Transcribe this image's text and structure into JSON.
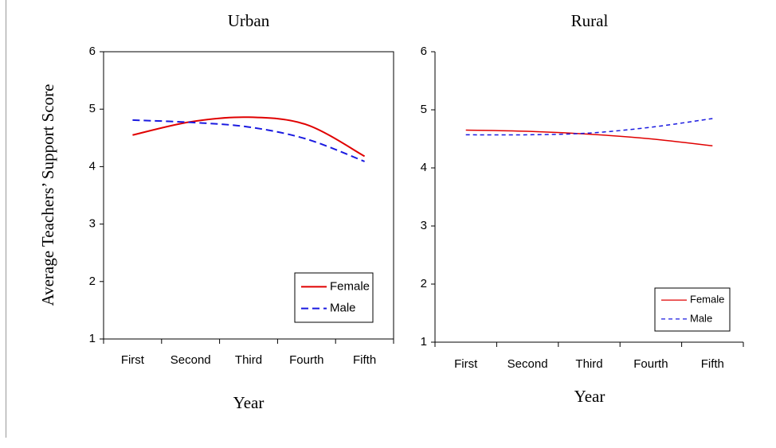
{
  "chart_data": [
    {
      "type": "line",
      "title": "Urban",
      "ylabel": "Average Teachers’ Support Score",
      "xlabel": "Year",
      "categories": [
        "First",
        "Second",
        "Third",
        "Fourth",
        "Fifth"
      ],
      "series": [
        {
          "name": "Female",
          "color": "#e00000",
          "values": [
            4.55,
            4.78,
            4.86,
            4.73,
            4.18
          ]
        },
        {
          "name": "Male",
          "color": "#1a1ae0",
          "values": [
            4.81,
            4.77,
            4.69,
            4.48,
            4.09
          ]
        }
      ],
      "ylim": [
        1,
        6
      ],
      "yticks": [
        1,
        2,
        3,
        4,
        5,
        6
      ],
      "legend": "lower right"
    },
    {
      "type": "line",
      "title": "Rural",
      "xlabel": "Year",
      "categories": [
        "First",
        "Second",
        "Third",
        "Fourth",
        "Fifth"
      ],
      "series": [
        {
          "name": "Female",
          "color": "#e00000",
          "values": [
            4.65,
            4.63,
            4.58,
            4.5,
            4.38
          ]
        },
        {
          "name": "Male",
          "color": "#1a1ae0",
          "values": [
            4.57,
            4.57,
            4.6,
            4.7,
            4.85
          ]
        }
      ],
      "ylim": [
        1,
        6
      ],
      "yticks": [
        1,
        2,
        3,
        4,
        5,
        6
      ],
      "legend": "lower right"
    }
  ]
}
